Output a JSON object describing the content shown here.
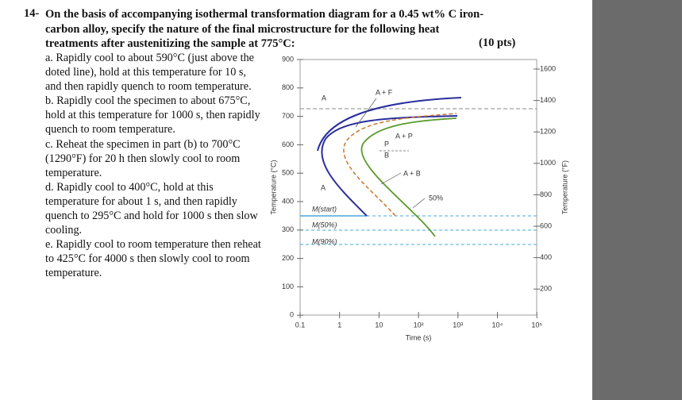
{
  "question": {
    "number": "14-",
    "prompt": "On the basis of accompanying isothermal transformation diagram for a 0.45 wt% C iron-carbon alloy, specify the nature of the final microstructure for the following heat treatments after austenitizing the sample at 775°C:",
    "points": "(10 pts)",
    "items": [
      "a. Rapidly cool to about 590°C (just above the doted line), hold at this temperature for 10 s, and then rapidly quench to room temperature.",
      "b. Rapidly cool the specimen to about 675°C, hold at this temperature for 1000 s, then rapidly quench to room temperature.",
      "c. Reheat the specimen in part (b) to 700°C (1290°F) for 20 h then slowly cool to room temperature.",
      "d. Rapidly cool to 400°C, hold at this temperature for about 1 s, and then rapidly quench to 295°C and hold for 1000 s then slow cooling.",
      "e. Rapidly cool to room temperature then reheat to 425°C for 4000 s then slowly cool to room temperature."
    ]
  },
  "figure": {
    "left_axis_label": "Temperature (°C)",
    "right_axis_label": "Temperature (°F)",
    "x_axis_label": "Time (s)",
    "left_ticks": [
      "900",
      "800",
      "700",
      "600",
      "500",
      "400",
      "300",
      "200",
      "100",
      "0"
    ],
    "right_ticks": [
      "1600",
      "1400",
      "1200",
      "1000",
      "800",
      "600",
      "400",
      "200"
    ],
    "x_ticks": [
      "0.1",
      "1",
      "10",
      "10²",
      "10³",
      "10⁴",
      "10⁵"
    ],
    "region_labels": [
      "A",
      "A + F",
      "A + P",
      "P",
      "B",
      "A + B",
      "A",
      "50%",
      "M(start)",
      "M(50%)",
      "M(90%)"
    ]
  }
}
